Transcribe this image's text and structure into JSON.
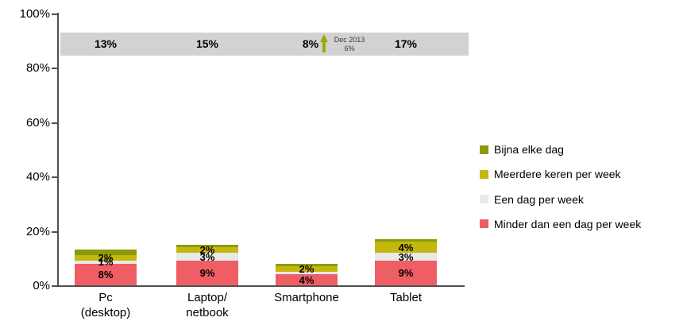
{
  "chart_data": {
    "type": "bar",
    "subtype": "stacked-column",
    "title": "",
    "categories": [
      "Pc\n(desktop)",
      "Laptop/\nnetbook",
      "Smartphone",
      "Tablet"
    ],
    "series": [
      {
        "name": "Minder dan een dag per week",
        "color": "#EF5E65",
        "values": [
          8,
          9,
          4,
          9
        ],
        "labels": [
          "8%",
          "9%",
          "4%",
          "9%"
        ]
      },
      {
        "name": "Een dag per week",
        "color": "#E9E9E7",
        "values": [
          1,
          3,
          1,
          3
        ],
        "labels": [
          "1%",
          "3%",
          null,
          "3%"
        ]
      },
      {
        "name": "Meerdere keren per week",
        "color": "#C3B80D",
        "values": [
          2,
          2,
          2,
          4
        ],
        "labels": [
          "2%",
          "2%",
          "2%",
          "4%"
        ]
      },
      {
        "name": "Bijna elke dag",
        "color": "#8C9A07",
        "values": [
          2,
          1,
          1,
          1
        ],
        "labels": [
          null,
          null,
          null,
          null
        ]
      }
    ],
    "legend": [
      "Bijna elke dag",
      "Meerdere keren per week",
      "Een dag per week",
      "Minder dan een dag per week"
    ],
    "legend_position": "right",
    "y_axis": {
      "ticks": [
        "0%",
        "20%",
        "40%",
        "60%",
        "80%",
        "100%"
      ],
      "tick_values": [
        0,
        20,
        40,
        60,
        80,
        100
      ],
      "ylim": [
        0,
        100
      ]
    },
    "grid": "off",
    "totals_band": {
      "color": "#D2D2D2",
      "totals": [
        "13%",
        "15%",
        "8%",
        "17%"
      ],
      "y_range_pct": [
        84.5,
        92.8
      ]
    },
    "annotation": {
      "attached_to": "Smartphone",
      "arrow": "up",
      "arrow_color": "#9DAB08",
      "line1": "Dec 2013",
      "line2": "6%"
    },
    "colors": {
      "axis": "#4F4F4F",
      "label_text": "#000000",
      "background": "#FFFFFF"
    }
  }
}
